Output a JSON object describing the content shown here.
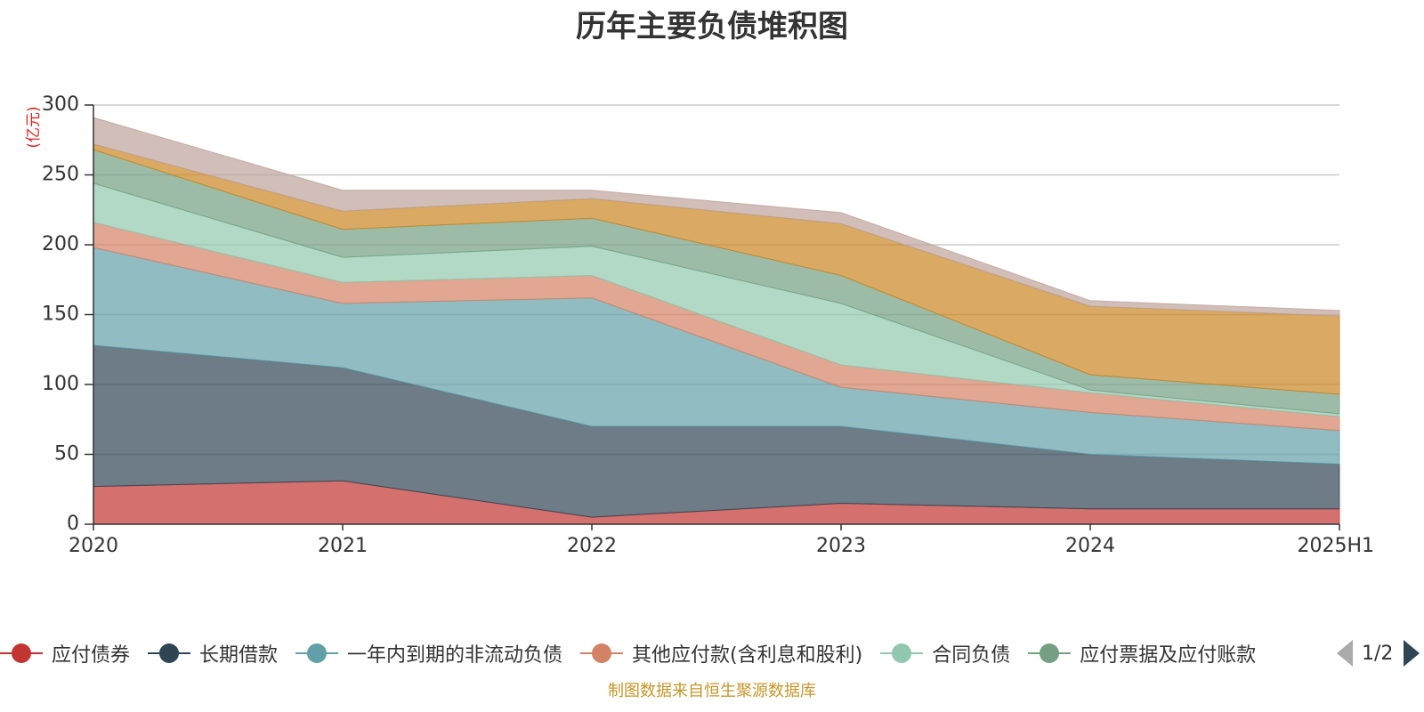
{
  "chart_data": {
    "type": "area",
    "stacked": true,
    "title": "历年主要负债堆积图",
    "ylabel": "(亿元)",
    "xlabel": "",
    "categories": [
      "2020",
      "2021",
      "2022",
      "2023",
      "2024",
      "2025H1"
    ],
    "y_ticks": [
      "0",
      "50",
      "100",
      "150",
      "200",
      "250",
      "300"
    ],
    "ylim": [
      0,
      300
    ],
    "grid": true,
    "series": [
      {
        "name": "应付债券",
        "color": "#c23531",
        "values": [
          27,
          31,
          5,
          15,
          11,
          11
        ]
      },
      {
        "name": "长期借款",
        "color": "#2f4554",
        "values": [
          101,
          81,
          65,
          55,
          39,
          32
        ]
      },
      {
        "name": "一年内到期的非流动负债",
        "color": "#61a0a8",
        "values": [
          70,
          46,
          92,
          28,
          30,
          24
        ]
      },
      {
        "name": "其他应付款(含利息和股利)",
        "color": "#d48265",
        "values": [
          18,
          15,
          16,
          16,
          14,
          10
        ]
      },
      {
        "name": "合同负债",
        "color": "#91c7ae",
        "values": [
          28,
          18,
          21,
          44,
          2,
          2
        ]
      },
      {
        "name": "应付票据及应付账款",
        "color": "#749f83",
        "values": [
          24,
          20,
          20,
          20,
          11,
          14
        ]
      },
      {
        "color": "#ca8622",
        "values": [
          4,
          13,
          14,
          37,
          49,
          56
        ]
      },
      {
        "color": "#bda29a",
        "values": [
          19,
          15,
          6,
          8,
          4,
          4
        ]
      }
    ]
  },
  "legend": {
    "pager_text": "1/2",
    "items": [
      {
        "label": "应付债券",
        "color": "#c23531"
      },
      {
        "label": "长期借款",
        "color": "#2f4554"
      },
      {
        "label": "一年内到期的非流动负债",
        "color": "#61a0a8"
      },
      {
        "label": "其他应付款(含利息和股利)",
        "color": "#d48265"
      },
      {
        "label": "合同负债",
        "color": "#91c7ae"
      },
      {
        "label": "应付票据及应付账款",
        "color": "#749f83"
      }
    ]
  },
  "footer": {
    "source": "制图数据来自恒生聚源数据库"
  }
}
